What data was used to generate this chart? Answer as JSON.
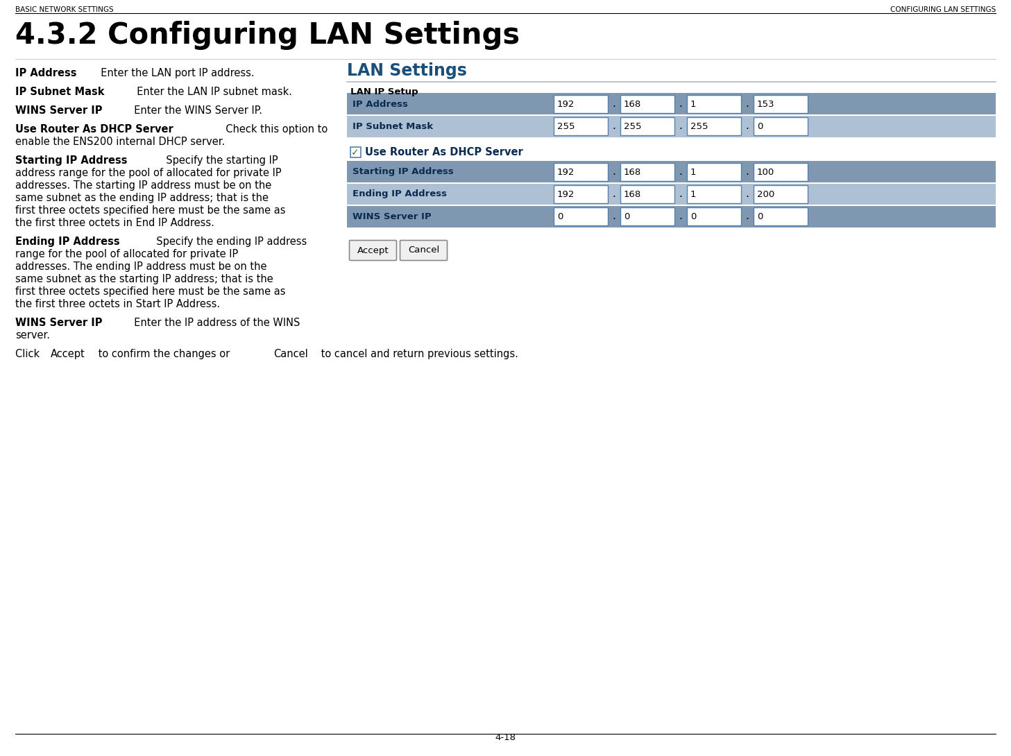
{
  "header_left": "BASIC NETWORK SETTINGS",
  "header_right": "CONFIGURING LAN SETTINGS",
  "title": "4.3.2 Configuring LAN Settings",
  "page_number": "4-18",
  "bg_color": "#ffffff",
  "section_title": "LAN Settings",
  "section_title_color": "#1a4f7a",
  "table_header_bg": "#8097b1",
  "table_row_bg": "#aec0d4",
  "subsection_label": "LAN IP Setup",
  "dhcp_label": "Use Router As DHCP Server",
  "rows": [
    {
      "label": "IP Address",
      "values": [
        "192",
        "168",
        "1",
        "153"
      ]
    },
    {
      "label": "IP Subnet Mask",
      "values": [
        "255",
        "255",
        "255",
        "0"
      ]
    }
  ],
  "dhcp_rows": [
    {
      "label": "Starting IP Address",
      "values": [
        "192",
        "168",
        "1",
        "100"
      ]
    },
    {
      "label": "Ending IP Address",
      "values": [
        "192",
        "168",
        "1",
        "200"
      ]
    },
    {
      "label": "WINS Server IP",
      "values": [
        "0",
        "0",
        "0",
        "0"
      ]
    }
  ],
  "accept_btn": "Accept",
  "cancel_btn": "Cancel",
  "paragraphs": [
    {
      "bold": "IP Address",
      "rest": "  Enter the LAN port IP address."
    },
    {
      "bold": "IP Subnet Mask",
      "rest": "  Enter the LAN IP subnet mask."
    },
    {
      "bold": "WINS Server IP",
      "rest": "  Enter the WINS Server IP."
    },
    {
      "bold": "Use Router As DHCP Server",
      "rest": "  Check this option to\nenable the ENS200 internal DHCP server."
    },
    {
      "bold": "Starting IP Address",
      "rest": "  Specify the starting IP\naddress range for the pool of allocated for private IP\naddresses. The starting IP address must be on the\nsame subnet as the ending IP address; that is the\nfirst three octets specified here must be the same as\nthe first three octets in End IP Address."
    },
    {
      "bold": "Ending IP Address",
      "rest": "  Specify the ending IP address\nrange for the pool of allocated for private IP\naddresses. The ending IP address must be on the\nsame subnet as the starting IP address; that is the\nfirst three octets specified here must be the same as\nthe first three octets in Start IP Address."
    },
    {
      "bold": "WINS Server IP",
      "rest": "  Enter the IP address of the WINS\nserver."
    }
  ],
  "click_line_parts": [
    "Click ",
    "Accept",
    " to confirm the changes or ",
    "Cancel",
    " to cancel and return previous settings."
  ]
}
